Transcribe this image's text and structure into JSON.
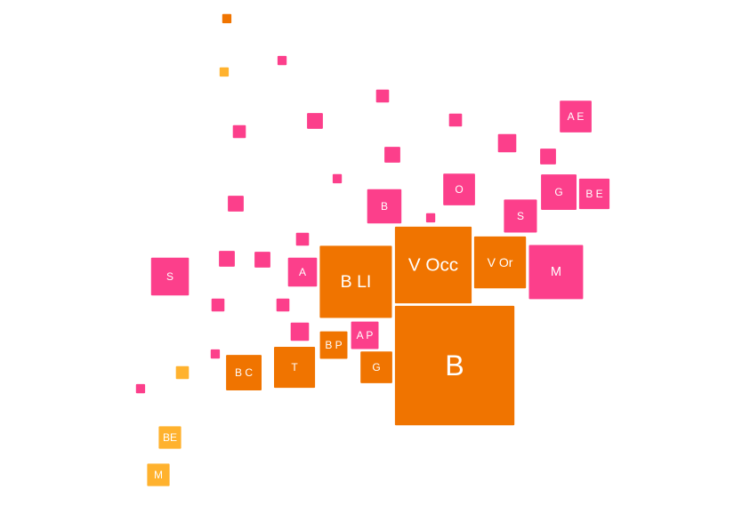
{
  "chart_data": {
    "type": "scatter",
    "encoding": "square markers, area proportional to size",
    "axes_visible": false,
    "grid": false,
    "legend": "none",
    "colors": {
      "orange": "#f07400",
      "pink": "#fc3f8b",
      "yellow": "#ffb22e"
    },
    "points": [
      {
        "label": "",
        "color": "orange",
        "size": 1
      },
      {
        "label": "",
        "color": "yellow",
        "size": 1
      },
      {
        "label": "",
        "color": "pink",
        "size": 1
      },
      {
        "label": "",
        "color": "pink",
        "size": 2
      },
      {
        "label": "",
        "color": "pink",
        "size": 2
      },
      {
        "label": "",
        "color": "pink",
        "size": 3
      },
      {
        "label": "A E",
        "color": "pink",
        "size": 12
      },
      {
        "label": "",
        "color": "pink",
        "size": 2
      },
      {
        "label": "",
        "color": "pink",
        "size": 4
      },
      {
        "label": "",
        "color": "pink",
        "size": 3
      },
      {
        "label": "",
        "color": "pink",
        "size": 3
      },
      {
        "label": "",
        "color": "pink",
        "size": 1
      },
      {
        "label": "O",
        "color": "pink",
        "size": 12
      },
      {
        "label": "G",
        "color": "pink",
        "size": 15
      },
      {
        "label": "B E",
        "color": "pink",
        "size": 11
      },
      {
        "label": "",
        "color": "pink",
        "size": 3
      },
      {
        "label": "B",
        "color": "pink",
        "size": 14
      },
      {
        "label": "S",
        "color": "pink",
        "size": 13
      },
      {
        "label": "",
        "color": "pink",
        "size": 1
      },
      {
        "label": "",
        "color": "pink",
        "size": 2
      },
      {
        "label": "V Occ",
        "color": "orange",
        "size": 70
      },
      {
        "label": "V Or",
        "color": "orange",
        "size": 32
      },
      {
        "label": "M",
        "color": "pink",
        "size": 35
      },
      {
        "label": "",
        "color": "pink",
        "size": 3
      },
      {
        "label": "",
        "color": "pink",
        "size": 3
      },
      {
        "label": "S",
        "color": "pink",
        "size": 17
      },
      {
        "label": "A",
        "color": "pink",
        "size": 10
      },
      {
        "label": "B LI",
        "color": "orange",
        "size": 62
      },
      {
        "label": "",
        "color": "pink",
        "size": 2
      },
      {
        "label": "",
        "color": "pink",
        "size": 2
      },
      {
        "label": "",
        "color": "pink",
        "size": 4
      },
      {
        "label": "A P",
        "color": "pink",
        "size": 9
      },
      {
        "label": "B P",
        "color": "orange",
        "size": 9
      },
      {
        "label": "B",
        "color": "orange",
        "size": 170
      },
      {
        "label": "",
        "color": "pink",
        "size": 1
      },
      {
        "label": "B C",
        "color": "orange",
        "size": 15
      },
      {
        "label": "T",
        "color": "orange",
        "size": 20
      },
      {
        "label": "G",
        "color": "orange",
        "size": 12
      },
      {
        "label": "",
        "color": "yellow",
        "size": 2
      },
      {
        "label": "",
        "color": "pink",
        "size": 1
      },
      {
        "label": "BE",
        "color": "yellow",
        "size": 6
      },
      {
        "label": "M",
        "color": "yellow",
        "size": 6
      }
    ]
  }
}
